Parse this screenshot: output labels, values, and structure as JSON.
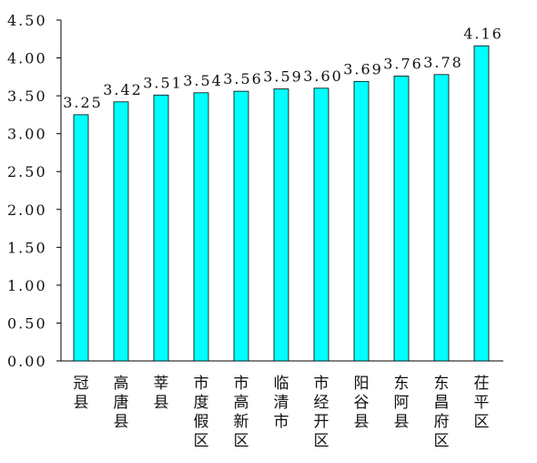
{
  "chart_data": {
    "type": "bar",
    "categories": [
      "冠县",
      "高唐县",
      "莘县",
      "市度假区",
      "市高新区",
      "临清市",
      "市经开区",
      "阳谷县",
      "东阿县",
      "东昌府区",
      "茌平区"
    ],
    "values": [
      3.25,
      3.42,
      3.51,
      3.54,
      3.56,
      3.59,
      3.6,
      3.69,
      3.76,
      3.78,
      4.16
    ],
    "value_labels": [
      "3.25",
      "3.42",
      "3.51",
      "3.54",
      "3.56",
      "3.59",
      "3.60",
      "3.69",
      "3.76",
      "3.78",
      "4.16"
    ],
    "y_ticks": [
      0,
      0.5,
      1,
      1.5,
      2,
      2.5,
      3,
      3.5,
      4,
      4.5
    ],
    "y_tick_labels": [
      "0.00",
      "0.50",
      "1.00",
      "1.50",
      "2.00",
      "2.50",
      "3.00",
      "3.50",
      "4.00",
      "4.50"
    ],
    "ylim": [
      0,
      4.5
    ],
    "grid": false,
    "legend": "none",
    "title": "",
    "xlabel": "",
    "ylabel": "",
    "colors": {
      "bar_fill": "#00FFFF",
      "bar_stroke": "#000000",
      "axis": "#000000"
    }
  }
}
